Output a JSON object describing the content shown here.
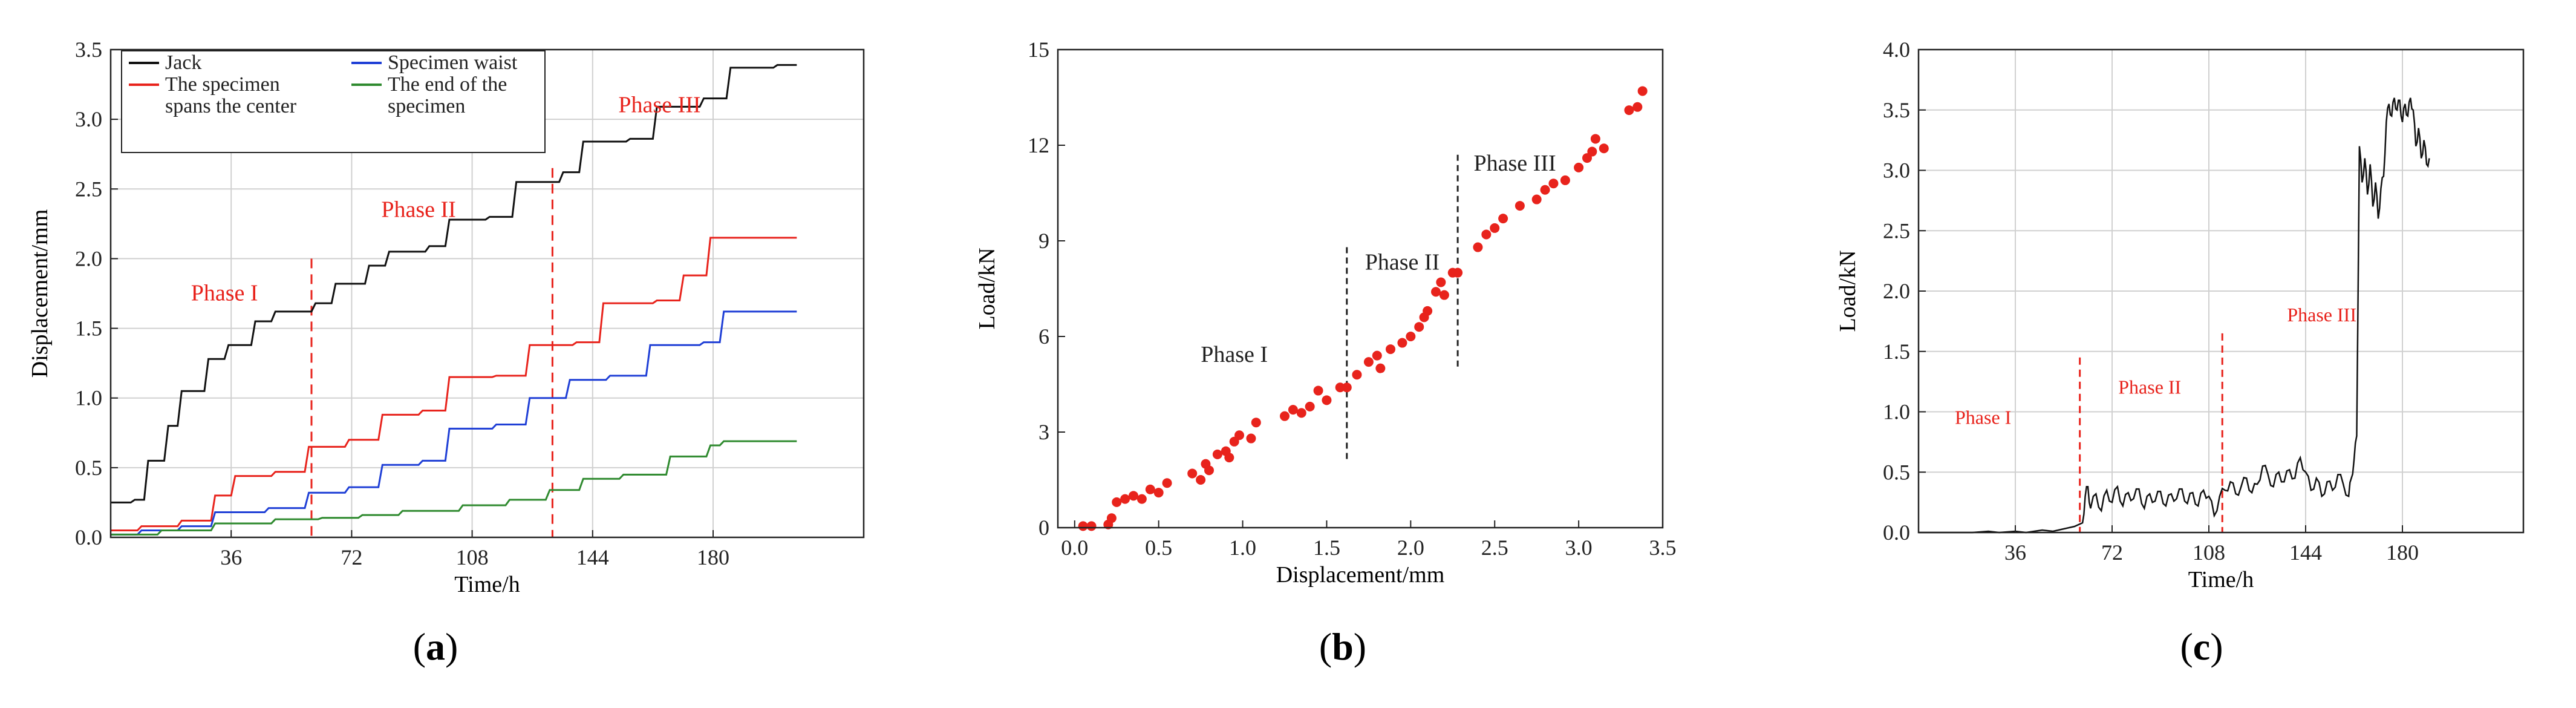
{
  "colors": {
    "black": "#111111",
    "red": "#e8231c",
    "blue": "#1f3fd6",
    "green": "#2f8a2f",
    "grid": "#d0d0d0",
    "axis": "#222222"
  },
  "chart_data": [
    {
      "id": "a",
      "type": "line",
      "panel_label": "(a)",
      "panel_letter": "a",
      "xlabel": "Time/h",
      "ylabel": "Displacement/mm",
      "xlim": [
        0,
        225
      ],
      "ylim": [
        0,
        3.5
      ],
      "xticks": [
        36,
        72,
        108,
        144,
        180
      ],
      "yticks": [
        0.0,
        0.5,
        1.0,
        1.5,
        2.0,
        2.5,
        3.0,
        3.5
      ],
      "ytick_labels": [
        "0.0",
        "0.5",
        "1.0",
        "1.5",
        "2.0",
        "2.5",
        "3.0",
        "3.5"
      ],
      "grid": true,
      "legend_position": "top-left",
      "legend": [
        {
          "label": "Jack",
          "color": "#111111"
        },
        {
          "label": "Specimen waist",
          "color": "#1f3fd6"
        },
        {
          "label": "The specimen spans the center",
          "lines": [
            "The specimen",
            "spans the center"
          ],
          "color": "#e8231c"
        },
        {
          "label": "The end of the specimen",
          "lines": [
            "The end of the",
            "specimen"
          ],
          "color": "#2f8a2f"
        }
      ],
      "phase_lines": [
        60,
        132
      ],
      "phase_labels": [
        {
          "text": "Phase I",
          "x": 34,
          "y": 1.7
        },
        {
          "text": "Phase II",
          "x": 92,
          "y": 2.3
        },
        {
          "text": "Phase III",
          "x": 164,
          "y": 3.05
        }
      ],
      "series": [
        {
          "name": "Jack",
          "color": "#111111",
          "steps": [
            [
              0,
              0.25
            ],
            [
              6,
              0.27
            ],
            [
              10,
              0.55
            ],
            [
              16,
              0.8
            ],
            [
              20,
              1.05
            ],
            [
              28,
              1.28
            ],
            [
              34,
              1.38
            ],
            [
              42,
              1.55
            ],
            [
              48,
              1.62
            ],
            [
              60,
              1.68
            ],
            [
              66,
              1.82
            ],
            [
              76,
              1.95
            ],
            [
              82,
              2.05
            ],
            [
              94,
              2.09
            ],
            [
              100,
              2.28
            ],
            [
              112,
              2.3
            ],
            [
              120,
              2.55
            ],
            [
              134,
              2.62
            ],
            [
              140,
              2.84
            ],
            [
              154,
              2.86
            ],
            [
              162,
              3.09
            ],
            [
              176,
              3.15
            ],
            [
              184,
              3.37
            ],
            [
              198,
              3.39
            ]
          ],
          "end": 205
        },
        {
          "name": "The specimen spans the center",
          "color": "#e8231c",
          "steps": [
            [
              0,
              0.05
            ],
            [
              8,
              0.08
            ],
            [
              20,
              0.12
            ],
            [
              30,
              0.3
            ],
            [
              36,
              0.44
            ],
            [
              48,
              0.47
            ],
            [
              58,
              0.65
            ],
            [
              70,
              0.7
            ],
            [
              80,
              0.88
            ],
            [
              92,
              0.91
            ],
            [
              100,
              1.15
            ],
            [
              114,
              1.16
            ],
            [
              124,
              1.38
            ],
            [
              138,
              1.4
            ],
            [
              146,
              1.68
            ],
            [
              162,
              1.7
            ],
            [
              170,
              1.88
            ],
            [
              178,
              2.15
            ]
          ],
          "end": 205
        },
        {
          "name": "Specimen waist",
          "color": "#1f3fd6",
          "steps": [
            [
              0,
              0.02
            ],
            [
              8,
              0.05
            ],
            [
              20,
              0.08
            ],
            [
              30,
              0.18
            ],
            [
              46,
              0.21
            ],
            [
              58,
              0.32
            ],
            [
              70,
              0.36
            ],
            [
              80,
              0.52
            ],
            [
              92,
              0.55
            ],
            [
              100,
              0.78
            ],
            [
              114,
              0.81
            ],
            [
              124,
              1.0
            ],
            [
              136,
              1.13
            ],
            [
              148,
              1.16
            ],
            [
              160,
              1.38
            ],
            [
              176,
              1.4
            ],
            [
              182,
              1.62
            ]
          ],
          "end": 205
        },
        {
          "name": "The end of the specimen",
          "color": "#2f8a2f",
          "steps": [
            [
              0,
              0.02
            ],
            [
              14,
              0.05
            ],
            [
              30,
              0.1
            ],
            [
              48,
              0.13
            ],
            [
              62,
              0.14
            ],
            [
              74,
              0.16
            ],
            [
              86,
              0.19
            ],
            [
              104,
              0.23
            ],
            [
              118,
              0.27
            ],
            [
              130,
              0.34
            ],
            [
              140,
              0.42
            ],
            [
              152,
              0.45
            ],
            [
              166,
              0.58
            ],
            [
              178,
              0.66
            ],
            [
              182,
              0.69
            ]
          ],
          "end": 205
        }
      ]
    },
    {
      "id": "b",
      "type": "scatter",
      "panel_label": "(b)",
      "panel_letter": "b",
      "xlabel": "Displacement/mm",
      "ylabel": "Load/kN",
      "xlim": [
        -0.1,
        3.5
      ],
      "ylim": [
        0,
        15
      ],
      "xticks": [
        0.0,
        0.5,
        1.0,
        1.5,
        2.0,
        2.5,
        3.0,
        3.5
      ],
      "xtick_labels": [
        "0.0",
        "0.5",
        "1.0",
        "1.5",
        "2.0",
        "2.5",
        "3.0",
        "3.5"
      ],
      "yticks": [
        0,
        3,
        6,
        9,
        12,
        15
      ],
      "ytick_labels": [
        "0",
        "3",
        "6",
        "9",
        "12",
        "15"
      ],
      "grid": false,
      "marker_color": "#e8231c",
      "phase_lines": [
        {
          "x": 1.62,
          "y0": 2.1,
          "y1": 8.8
        },
        {
          "x": 2.28,
          "y0": 5.0,
          "y1": 11.7
        }
      ],
      "phase_labels": [
        {
          "text": "Phase I",
          "x": 0.95,
          "y": 5.2
        },
        {
          "text": "Phase II",
          "x": 1.95,
          "y": 8.1
        },
        {
          "text": "Phase III",
          "x": 2.62,
          "y": 11.2
        }
      ],
      "points": [
        [
          0.05,
          0.05
        ],
        [
          0.1,
          0.05
        ],
        [
          0.2,
          0.1
        ],
        [
          0.22,
          0.3
        ],
        [
          0.25,
          0.8
        ],
        [
          0.3,
          0.9
        ],
        [
          0.35,
          1.0
        ],
        [
          0.4,
          0.9
        ],
        [
          0.45,
          1.2
        ],
        [
          0.5,
          1.1
        ],
        [
          0.55,
          1.4
        ],
        [
          0.7,
          1.7
        ],
        [
          0.75,
          1.5
        ],
        [
          0.78,
          2.0
        ],
        [
          0.8,
          1.8
        ],
        [
          0.85,
          2.3
        ],
        [
          0.9,
          2.4
        ],
        [
          0.92,
          2.2
        ],
        [
          0.95,
          2.7
        ],
        [
          0.98,
          2.9
        ],
        [
          1.05,
          2.8
        ],
        [
          1.08,
          3.3
        ],
        [
          1.25,
          3.5
        ],
        [
          1.3,
          3.7
        ],
        [
          1.35,
          3.6
        ],
        [
          1.4,
          3.8
        ],
        [
          1.45,
          4.3
        ],
        [
          1.5,
          4.0
        ],
        [
          1.58,
          4.4
        ],
        [
          1.62,
          4.4
        ],
        [
          1.68,
          4.8
        ],
        [
          1.75,
          5.2
        ],
        [
          1.8,
          5.4
        ],
        [
          1.82,
          5.0
        ],
        [
          1.88,
          5.6
        ],
        [
          1.95,
          5.8
        ],
        [
          2.0,
          6.0
        ],
        [
          2.05,
          6.3
        ],
        [
          2.08,
          6.6
        ],
        [
          2.1,
          6.8
        ],
        [
          2.15,
          7.4
        ],
        [
          2.18,
          7.7
        ],
        [
          2.2,
          7.3
        ],
        [
          2.25,
          8.0
        ],
        [
          2.28,
          8.0
        ],
        [
          2.4,
          8.8
        ],
        [
          2.45,
          9.2
        ],
        [
          2.5,
          9.4
        ],
        [
          2.55,
          9.7
        ],
        [
          2.65,
          10.1
        ],
        [
          2.75,
          10.3
        ],
        [
          2.8,
          10.6
        ],
        [
          2.85,
          10.8
        ],
        [
          2.92,
          10.9
        ],
        [
          3.0,
          11.3
        ],
        [
          3.05,
          11.6
        ],
        [
          3.08,
          11.8
        ],
        [
          3.1,
          12.2
        ],
        [
          3.15,
          11.9
        ],
        [
          3.3,
          13.1
        ],
        [
          3.35,
          13.2
        ],
        [
          3.38,
          13.7
        ]
      ]
    },
    {
      "id": "c",
      "type": "line",
      "panel_label": "(c)",
      "panel_letter": "c",
      "xlabel": "Time/h",
      "ylabel": "Load/kN",
      "xlim": [
        0,
        225
      ],
      "ylim": [
        0,
        4.0
      ],
      "xticks": [
        36,
        72,
        108,
        144,
        180
      ],
      "yticks": [
        0.0,
        0.5,
        1.0,
        1.5,
        2.0,
        2.5,
        3.0,
        3.5,
        4.0
      ],
      "ytick_labels": [
        "0.0",
        "0.5",
        "1.0",
        "1.5",
        "2.0",
        "2.5",
        "3.0",
        "3.5",
        "4.0"
      ],
      "grid": true,
      "phase_lines": [
        {
          "x": 60,
          "y0": 0,
          "y1": 1.45
        },
        {
          "x": 113,
          "y0": 0,
          "y1": 1.65
        }
      ],
      "phase_labels": [
        {
          "text": "Phase I",
          "x": 24,
          "y": 0.9
        },
        {
          "text": "Phase II",
          "x": 86,
          "y": 1.15
        },
        {
          "text": "Phase III",
          "x": 150,
          "y": 1.75
        }
      ],
      "series": [
        {
          "name": "Load",
          "color": "#111111",
          "points": [
            [
              0,
              0
            ],
            [
              20,
              0
            ],
            [
              26,
              0.01
            ],
            [
              30,
              0.0
            ],
            [
              36,
              0.01
            ],
            [
              40,
              0.0
            ],
            [
              46,
              0.02
            ],
            [
              50,
              0.01
            ],
            [
              54,
              0.03
            ],
            [
              58,
              0.05
            ],
            [
              61,
              0.08
            ],
            [
              62,
              0.3
            ],
            [
              63,
              0.38
            ],
            [
              64,
              0.2
            ],
            [
              66,
              0.32
            ],
            [
              68,
              0.18
            ],
            [
              70,
              0.35
            ],
            [
              72,
              0.25
            ],
            [
              74,
              0.38
            ],
            [
              76,
              0.22
            ],
            [
              78,
              0.33
            ],
            [
              80,
              0.28
            ],
            [
              82,
              0.36
            ],
            [
              84,
              0.2
            ],
            [
              86,
              0.32
            ],
            [
              88,
              0.26
            ],
            [
              90,
              0.34
            ],
            [
              92,
              0.22
            ],
            [
              94,
              0.32
            ],
            [
              96,
              0.28
            ],
            [
              98,
              0.36
            ],
            [
              100,
              0.24
            ],
            [
              102,
              0.33
            ],
            [
              104,
              0.22
            ],
            [
              106,
              0.35
            ],
            [
              108,
              0.3
            ],
            [
              110,
              0.14
            ],
            [
              112,
              0.3
            ],
            [
              114,
              0.35
            ],
            [
              116,
              0.42
            ],
            [
              118,
              0.32
            ],
            [
              120,
              0.38
            ],
            [
              122,
              0.45
            ],
            [
              124,
              0.33
            ],
            [
              126,
              0.4
            ],
            [
              128,
              0.55
            ],
            [
              130,
              0.48
            ],
            [
              132,
              0.38
            ],
            [
              134,
              0.5
            ],
            [
              136,
              0.42
            ],
            [
              138,
              0.52
            ],
            [
              140,
              0.45
            ],
            [
              142,
              0.62
            ],
            [
              144,
              0.5
            ],
            [
              146,
              0.35
            ],
            [
              148,
              0.45
            ],
            [
              150,
              0.3
            ],
            [
              152,
              0.42
            ],
            [
              154,
              0.35
            ],
            [
              156,
              0.48
            ],
            [
              158,
              0.4
            ],
            [
              160,
              0.3
            ],
            [
              161,
              0.45
            ],
            [
              162,
              0.6
            ],
            [
              163,
              0.8
            ],
            [
              164,
              3.2
            ],
            [
              165,
              2.9
            ],
            [
              166,
              3.1
            ],
            [
              167,
              2.8
            ],
            [
              168,
              3.05
            ],
            [
              169,
              2.7
            ],
            [
              170,
              2.9
            ],
            [
              171,
              2.6
            ],
            [
              172,
              2.85
            ],
            [
              173,
              2.95
            ],
            [
              174,
              3.4
            ],
            [
              175,
              3.55
            ],
            [
              176,
              3.45
            ],
            [
              177,
              3.6
            ],
            [
              178,
              3.5
            ],
            [
              179,
              3.58
            ],
            [
              180,
              3.4
            ],
            [
              181,
              3.55
            ],
            [
              182,
              3.45
            ],
            [
              183,
              3.6
            ],
            [
              184,
              3.5
            ],
            [
              185,
              3.2
            ],
            [
              186,
              3.35
            ],
            [
              187,
              3.1
            ],
            [
              188,
              3.25
            ],
            [
              189,
              3.05
            ],
            [
              190,
              3.1
            ]
          ]
        }
      ]
    }
  ]
}
